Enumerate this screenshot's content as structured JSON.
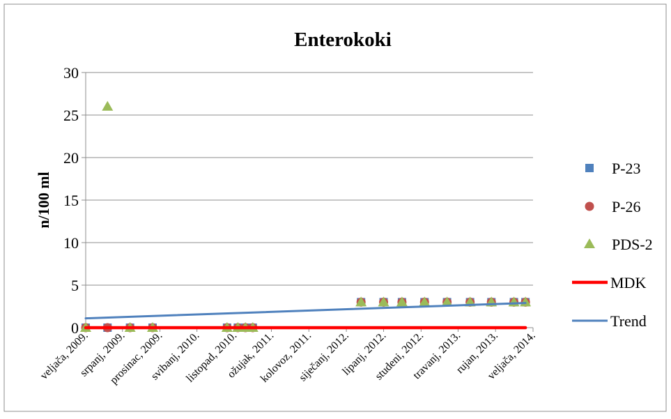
{
  "chart_data": {
    "type": "scatter",
    "title": "Enterokoki",
    "xlabel": "",
    "ylabel": "n/100 ml",
    "ylim": [
      0,
      30
    ],
    "yticks": [
      "0",
      "5",
      "10",
      "15",
      "20",
      "25",
      "30"
    ],
    "xlim": [
      "2009-02-01",
      "2014-02-01"
    ],
    "xticks": [
      {
        "date": "2009-02-01",
        "label": "veljača, 2009."
      },
      {
        "date": "2009-07-01",
        "label": "srpanj, 2009."
      },
      {
        "date": "2009-12-01",
        "label": "prosinac, 2009."
      },
      {
        "date": "2010-05-01",
        "label": "svibanj, 2010."
      },
      {
        "date": "2010-10-01",
        "label": "listopad, 2010."
      },
      {
        "date": "2011-03-01",
        "label": "ožujak, 2011."
      },
      {
        "date": "2011-08-01",
        "label": "kolovoz, 2011."
      },
      {
        "date": "2012-01-01",
        "label": "siječanj, 2012."
      },
      {
        "date": "2012-06-01",
        "label": "lipanj, 2012."
      },
      {
        "date": "2012-11-01",
        "label": "studeni, 2012."
      },
      {
        "date": "2013-04-01",
        "label": "travanj, 2013."
      },
      {
        "date": "2013-09-01",
        "label": "rujan, 2013."
      },
      {
        "date": "2014-02-01",
        "label": "veljača, 2014."
      }
    ],
    "grid": true,
    "legend_position": "right",
    "series": [
      {
        "name": "P-23",
        "marker": "square",
        "color": "#4F81BD",
        "points": [
          {
            "x": "2009-02-01",
            "y": 0
          },
          {
            "x": "2009-05-01",
            "y": 0
          },
          {
            "x": "2009-08-01",
            "y": 0
          },
          {
            "x": "2009-11-01",
            "y": 0
          },
          {
            "x": "2010-09-01",
            "y": 0
          },
          {
            "x": "2010-10-15",
            "y": 0
          },
          {
            "x": "2010-11-15",
            "y": 0
          },
          {
            "x": "2010-12-15",
            "y": 0
          },
          {
            "x": "2012-03-01",
            "y": 3
          },
          {
            "x": "2012-06-01",
            "y": 3
          },
          {
            "x": "2012-08-15",
            "y": 3
          },
          {
            "x": "2012-11-15",
            "y": 3
          },
          {
            "x": "2013-02-15",
            "y": 3
          },
          {
            "x": "2013-05-20",
            "y": 3
          },
          {
            "x": "2013-08-15",
            "y": 3
          },
          {
            "x": "2013-11-15",
            "y": 3
          },
          {
            "x": "2014-01-01",
            "y": 3
          }
        ]
      },
      {
        "name": "P-26",
        "marker": "circle",
        "color": "#C0504D",
        "points": [
          {
            "x": "2009-02-01",
            "y": 0
          },
          {
            "x": "2009-05-01",
            "y": 0
          },
          {
            "x": "2009-08-01",
            "y": 0
          },
          {
            "x": "2009-11-01",
            "y": 0
          },
          {
            "x": "2010-09-01",
            "y": 0
          },
          {
            "x": "2010-10-15",
            "y": 0
          },
          {
            "x": "2010-11-15",
            "y": 0
          },
          {
            "x": "2010-12-15",
            "y": 0
          },
          {
            "x": "2012-03-01",
            "y": 3
          },
          {
            "x": "2012-06-01",
            "y": 3
          },
          {
            "x": "2012-08-15",
            "y": 3
          },
          {
            "x": "2012-11-15",
            "y": 3
          },
          {
            "x": "2013-02-15",
            "y": 3
          },
          {
            "x": "2013-05-20",
            "y": 3
          },
          {
            "x": "2013-08-15",
            "y": 3
          },
          {
            "x": "2013-11-15",
            "y": 3
          },
          {
            "x": "2014-01-01",
            "y": 3
          }
        ]
      },
      {
        "name": "PDS-2",
        "marker": "triangle",
        "color": "#9BBB59",
        "points": [
          {
            "x": "2009-02-01",
            "y": 0
          },
          {
            "x": "2009-05-01",
            "y": 26
          },
          {
            "x": "2009-08-01",
            "y": 0
          },
          {
            "x": "2009-11-01",
            "y": 0
          },
          {
            "x": "2010-09-01",
            "y": 0
          },
          {
            "x": "2010-10-15",
            "y": 0
          },
          {
            "x": "2010-11-15",
            "y": 0
          },
          {
            "x": "2010-12-15",
            "y": 0
          },
          {
            "x": "2012-03-01",
            "y": 3
          },
          {
            "x": "2012-06-01",
            "y": 3
          },
          {
            "x": "2012-08-15",
            "y": 3
          },
          {
            "x": "2012-11-15",
            "y": 3
          },
          {
            "x": "2013-02-15",
            "y": 3
          },
          {
            "x": "2013-05-20",
            "y": 3
          },
          {
            "x": "2013-08-15",
            "y": 3
          },
          {
            "x": "2013-11-15",
            "y": 3
          },
          {
            "x": "2014-01-01",
            "y": 3
          }
        ]
      },
      {
        "name": "MDK",
        "marker": "line",
        "color": "#FF0000",
        "points": [
          {
            "x": "2009-02-01",
            "y": 0
          },
          {
            "x": "2014-01-01",
            "y": 0
          }
        ]
      },
      {
        "name": "Trend",
        "marker": "line",
        "color": "#4F81BD",
        "points": [
          {
            "x": "2009-02-01",
            "y": 1.1
          },
          {
            "x": "2014-01-01",
            "y": 2.9
          }
        ]
      }
    ]
  }
}
